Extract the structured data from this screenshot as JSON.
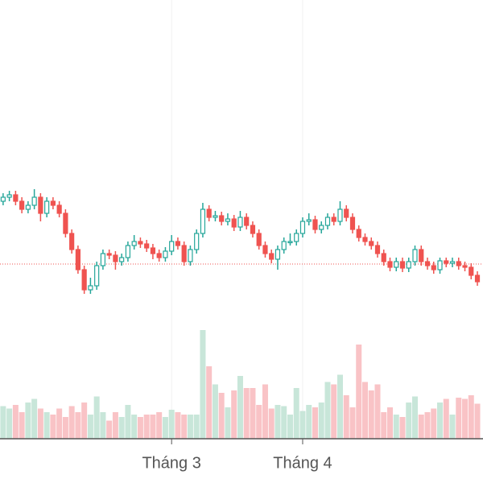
{
  "chart_data": {
    "type": "candlestick",
    "categories": [
      null,
      null,
      null,
      null,
      null,
      null,
      null,
      null,
      null,
      null,
      null,
      null,
      null,
      null,
      null,
      null,
      null,
      null,
      null,
      null,
      null,
      null,
      null,
      null,
      null,
      null,
      null,
      null,
      null,
      null,
      null,
      null,
      null,
      null,
      null,
      null,
      null,
      null,
      null,
      null,
      null,
      null,
      null,
      null,
      null,
      null,
      null,
      null,
      null,
      null,
      null,
      null,
      null,
      null,
      null,
      null,
      null,
      null,
      null,
      null,
      null,
      null,
      null,
      null,
      null,
      null,
      null,
      null,
      null,
      null,
      null,
      null,
      null,
      null,
      null,
      null,
      null
    ],
    "open": [
      35,
      35.5,
      35.8,
      35,
      34,
      34.5,
      35.5,
      33.5,
      35,
      34.5,
      33.5,
      31,
      29,
      26.5,
      24,
      24.5,
      27,
      28.5,
      28.3,
      27.5,
      28,
      29.5,
      30,
      29.7,
      29.2,
      28.5,
      28,
      28.8,
      30,
      29.5,
      27.5,
      29,
      31,
      34,
      33,
      33.2,
      32.5,
      32.8,
      31.8,
      33,
      32,
      31,
      29.5,
      28.5,
      27.8,
      29,
      30,
      30,
      31,
      32.5,
      32.7,
      31.5,
      32,
      33,
      32.5,
      34,
      33,
      31.5,
      30.5,
      30,
      29.5,
      28.5,
      27.5,
      26.8,
      27.5,
      26.7,
      27.5,
      29,
      27.5,
      27,
      26.5,
      27.6,
      27.3,
      27.5,
      27,
      26.8,
      25.8
    ],
    "high": [
      36,
      36.3,
      36.3,
      35.5,
      35,
      36.5,
      36,
      35.5,
      35.5,
      35,
      34,
      31.5,
      29.5,
      27,
      25.5,
      27.5,
      29,
      29,
      28.8,
      28.5,
      30,
      30.8,
      30.5,
      30.2,
      29.7,
      29,
      29.3,
      30.8,
      30.5,
      30,
      29.5,
      31.5,
      34.8,
      34.5,
      33.8,
      33.7,
      33.5,
      33.3,
      33.8,
      33.5,
      32.5,
      31.5,
      30,
      29,
      29.5,
      30.5,
      31,
      31.5,
      33,
      33.5,
      33.2,
      32.5,
      33.5,
      33.5,
      35,
      34.5,
      33.5,
      32,
      31,
      30.5,
      30,
      29,
      28,
      28,
      28,
      28,
      29.5,
      29.5,
      28,
      27.5,
      28,
      28,
      28,
      28,
      27.5,
      27.3,
      26.3
    ],
    "low": [
      34.5,
      35,
      34.5,
      33.5,
      33.5,
      34,
      32.5,
      33,
      34,
      33,
      30.5,
      28.5,
      26,
      23.5,
      23.5,
      24,
      26.5,
      27.8,
      26.5,
      27,
      27.5,
      29,
      29.2,
      28.7,
      27.8,
      27.5,
      27.5,
      28.3,
      29,
      27,
      27,
      28.5,
      30.5,
      32.5,
      32.5,
      32,
      32,
      31.3,
      31.3,
      31.5,
      30.5,
      29,
      28,
      27.3,
      26.5,
      28.5,
      29.5,
      29.5,
      30.5,
      32,
      31,
      31,
      31.5,
      32,
      32,
      32.5,
      31,
      30,
      29.5,
      29,
      28,
      27,
      26.3,
      26.3,
      26.2,
      26.2,
      27,
      27,
      26.5,
      26,
      26,
      26.8,
      26.8,
      26.5,
      26.3,
      25.3,
      24.5
    ],
    "close": [
      35.5,
      35.8,
      35,
      34,
      34.5,
      35.5,
      33.5,
      35,
      34.5,
      33.5,
      31,
      29,
      26.5,
      24,
      24.5,
      27,
      28.5,
      28.3,
      27.5,
      28,
      29.5,
      30,
      29.7,
      29.2,
      28.5,
      28,
      28.8,
      30,
      29.5,
      27.5,
      29,
      31,
      34,
      33,
      33.2,
      32.5,
      32.8,
      31.8,
      33,
      32,
      31,
      29.5,
      28.5,
      27.8,
      29,
      30,
      30,
      31,
      32.5,
      32.7,
      31.5,
      32,
      33,
      32.5,
      34,
      33,
      31.5,
      30.5,
      30,
      29.5,
      28.5,
      27.5,
      26.8,
      27.5,
      26.7,
      27.5,
      29,
      27.5,
      27,
      26.5,
      27.6,
      27.3,
      27.5,
      27,
      26.8,
      25.8,
      25
    ],
    "volume": [
      27,
      25,
      28,
      22,
      30,
      33,
      25,
      22,
      20,
      25,
      18,
      27,
      22,
      30,
      20,
      35,
      22,
      15,
      22,
      18,
      28,
      20,
      18,
      20,
      20,
      22,
      18,
      24,
      22,
      20,
      20,
      20,
      90,
      60,
      45,
      38,
      26,
      40,
      52,
      42,
      42,
      28,
      45,
      25,
      28,
      27,
      20,
      42,
      23,
      28,
      26,
      30,
      47,
      45,
      53,
      36,
      26,
      78,
      47,
      40,
      45,
      22,
      26,
      20,
      18,
      30,
      35,
      20,
      22,
      25,
      30,
      33,
      20,
      34,
      33,
      36,
      29
    ],
    "up_color": "#26a69a",
    "down_color": "#ef5350",
    "volume_up_color": "#c8e6d9",
    "volume_down_color": "#f9c3c6",
    "price_line": 27.2,
    "xlim": [
      -0.5,
      76.9
    ],
    "ylim": [
      5.5,
      60
    ],
    "volume_ylim": [
      0,
      100
    ],
    "xticks": [
      {
        "value": 27,
        "label": "Tháng 3"
      },
      {
        "value": 48,
        "label": "Tháng 4"
      }
    ],
    "grid": true
  }
}
